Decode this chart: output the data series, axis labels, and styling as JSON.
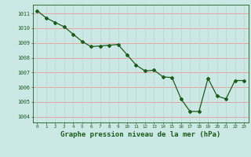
{
  "x": [
    0,
    1,
    2,
    3,
    4,
    5,
    6,
    7,
    8,
    9,
    10,
    11,
    12,
    13,
    14,
    15,
    16,
    17,
    18,
    19,
    20,
    21,
    22,
    23
  ],
  "y": [
    1011.2,
    1010.7,
    1010.4,
    1010.1,
    1009.6,
    1009.1,
    1008.75,
    1008.8,
    1008.85,
    1008.9,
    1008.2,
    1007.5,
    1007.1,
    1007.15,
    1006.7,
    1006.65,
    1005.2,
    1004.35,
    1004.35,
    1006.6,
    1005.4,
    1005.2,
    1006.45,
    1006.45
  ],
  "line_color": "#1a5c1a",
  "marker": "D",
  "marker_size": 2.0,
  "bg_color": "#cce8e4",
  "grid_color_h": "#e89898",
  "grid_color_v": "#b8d8d4",
  "axis_color": "#1a5c1a",
  "xlabel": "Graphe pression niveau de la mer (hPa)",
  "xlabel_fontsize": 6.5,
  "ylabel_ticks": [
    1004,
    1005,
    1006,
    1007,
    1008,
    1009,
    1010,
    1011
  ],
  "xticks": [
    0,
    1,
    2,
    3,
    4,
    5,
    6,
    7,
    8,
    9,
    10,
    11,
    12,
    13,
    14,
    15,
    16,
    17,
    18,
    19,
    20,
    21,
    22,
    23
  ],
  "ylim": [
    1003.6,
    1011.6
  ],
  "xlim": [
    -0.5,
    23.5
  ]
}
